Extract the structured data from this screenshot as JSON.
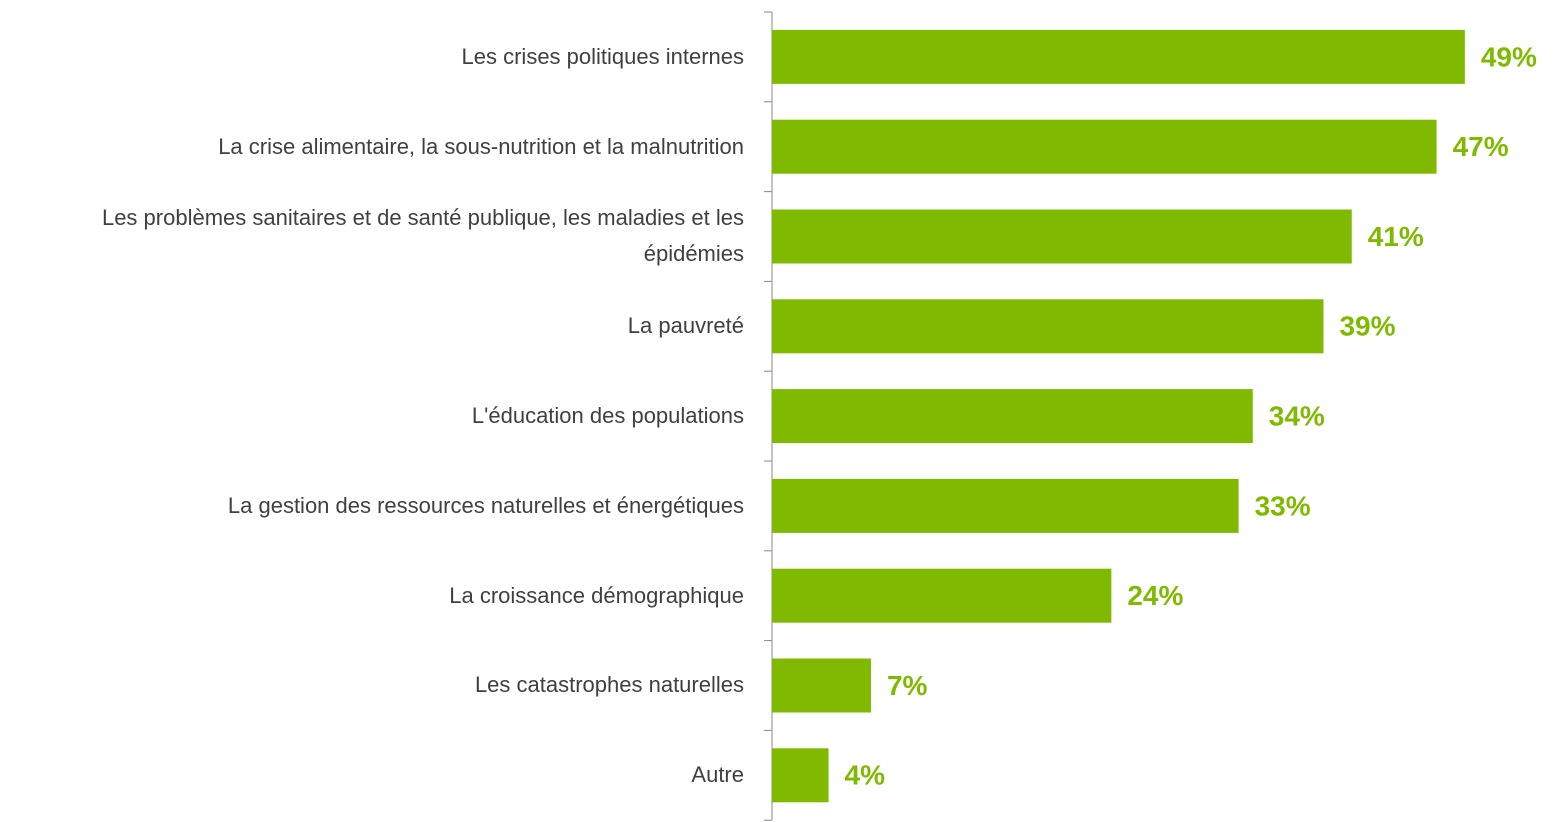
{
  "chart_data": {
    "type": "bar",
    "orientation": "horizontal",
    "color": "#7fba00",
    "categories": [
      "Les crises politiques internes",
      "La crise alimentaire, la sous-nutrition et la malnutrition",
      "Les problèmes sanitaires et de santé publique, les maladies et les épidémies",
      "La pauvreté",
      "L'éducation des populations",
      "La gestion des ressources naturelles et énergétiques",
      "La croissance démographique",
      "Les catastrophes naturelles",
      "Autre"
    ],
    "values": [
      49,
      47,
      41,
      39,
      34,
      33,
      24,
      7,
      4
    ],
    "value_labels": [
      "49%",
      "47%",
      "41%",
      "39%",
      "34%",
      "33%",
      "24%",
      "7%",
      "4%"
    ]
  }
}
